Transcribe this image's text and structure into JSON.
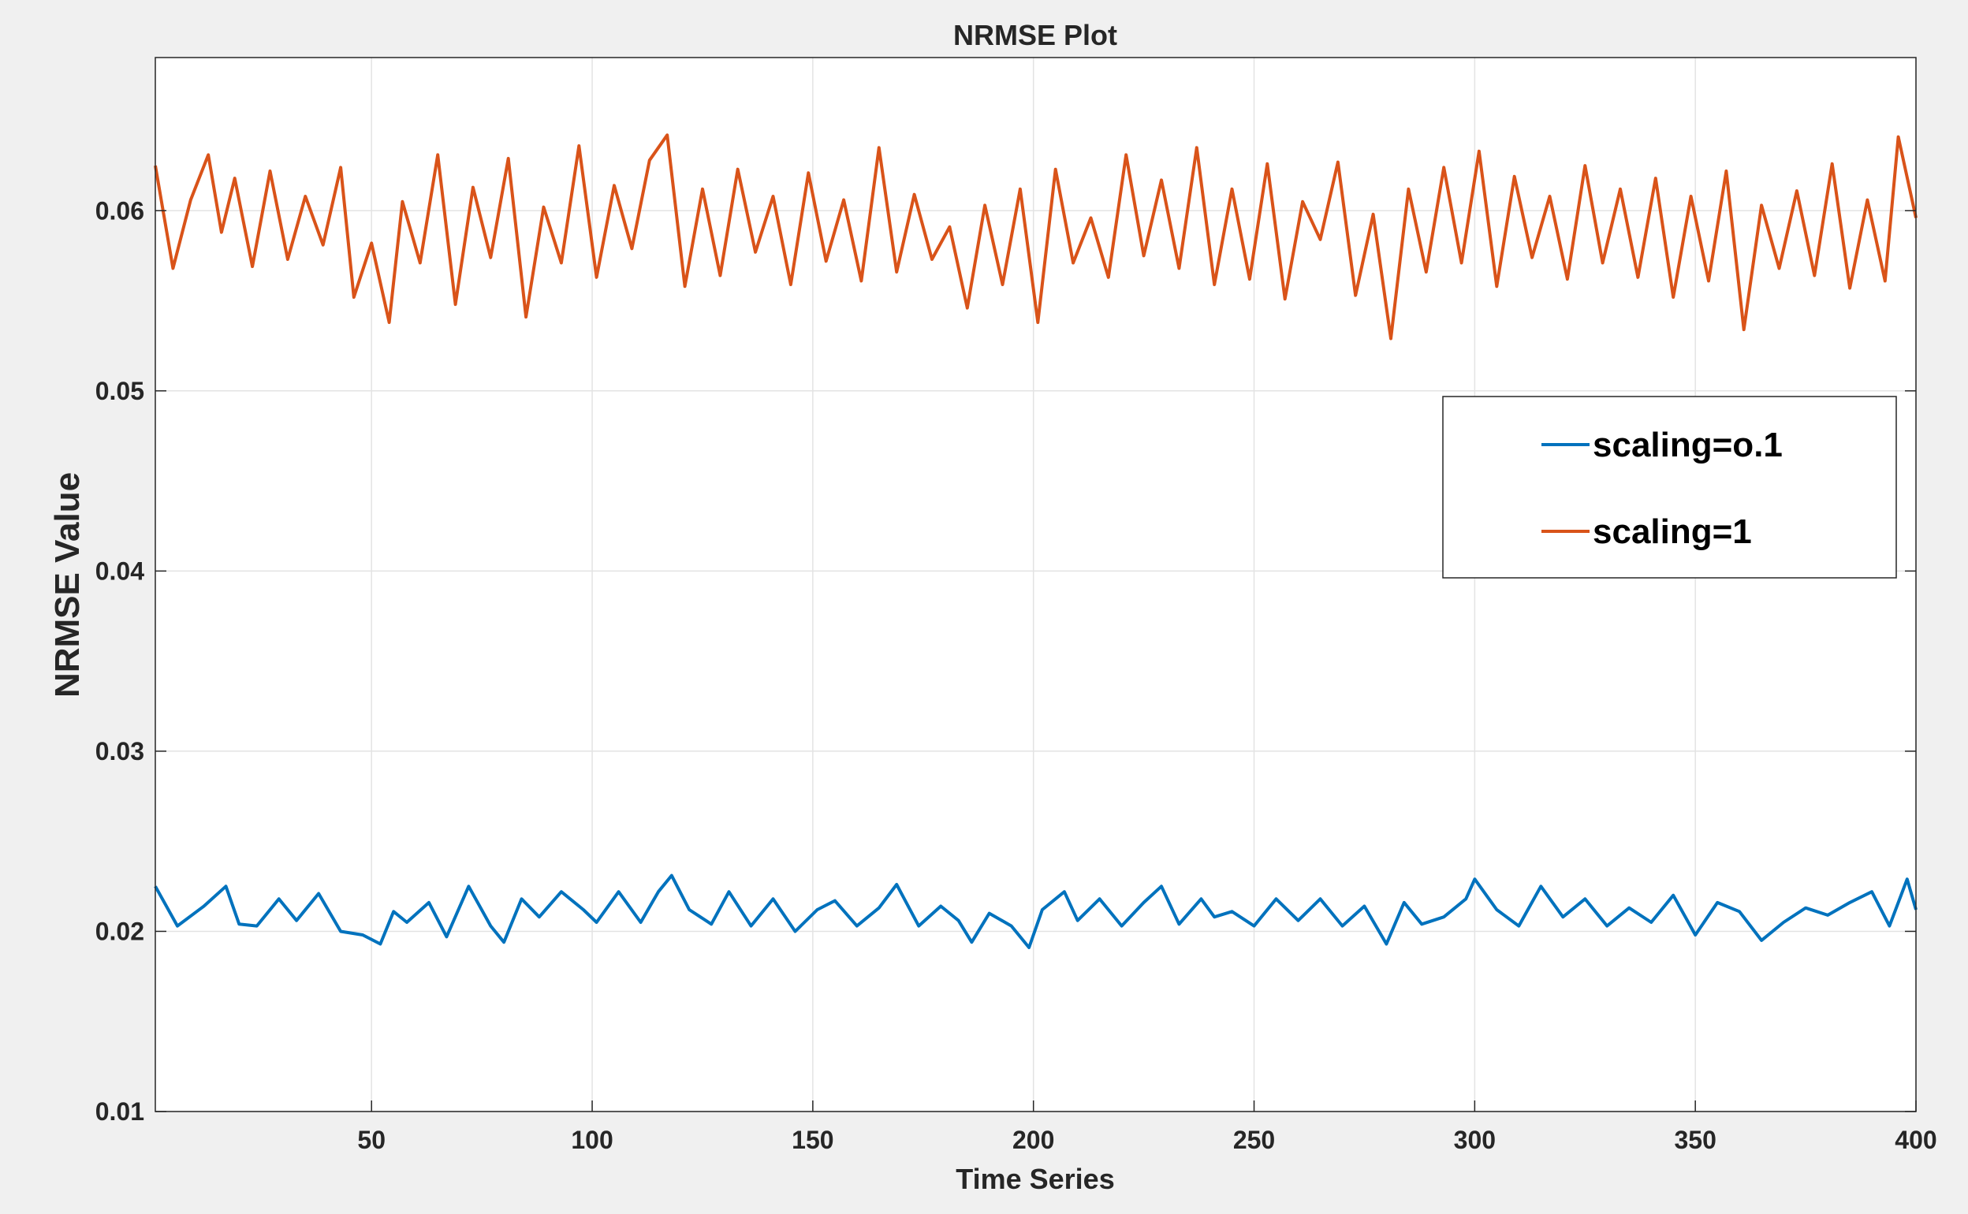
{
  "chart_data": {
    "type": "line",
    "title": "NRMSE Plot",
    "xlabel": "Time Series",
    "ylabel": "NRMSE Value",
    "xlim": [
      1,
      400
    ],
    "ylim": [
      0.01,
      0.0685
    ],
    "xticks": [
      50,
      100,
      150,
      200,
      250,
      300,
      350,
      400
    ],
    "yticks": [
      0.01,
      0.02,
      0.03,
      0.04,
      0.05,
      0.06
    ],
    "xtick_labels": [
      "50",
      "100",
      "150",
      "200",
      "250",
      "300",
      "350",
      "400"
    ],
    "ytick_labels": [
      "0.01",
      "0.02",
      "0.03",
      "0.04",
      "0.05",
      "0.06"
    ],
    "grid": true,
    "legend_position": "right",
    "series": [
      {
        "name": "scaling=o.1",
        "color": "#0072BD",
        "x": [
          1,
          6,
          12,
          17,
          20,
          24,
          29,
          33,
          38,
          43,
          48,
          52,
          55,
          58,
          63,
          67,
          72,
          77,
          80,
          84,
          88,
          93,
          98,
          101,
          106,
          111,
          115,
          118,
          122,
          127,
          131,
          136,
          141,
          146,
          151,
          155,
          160,
          165,
          169,
          174,
          179,
          183,
          186,
          190,
          195,
          199,
          202,
          207,
          210,
          215,
          220,
          225,
          229,
          233,
          238,
          241,
          245,
          250,
          255,
          260,
          265,
          270,
          275,
          280,
          284,
          288,
          293,
          298,
          300,
          305,
          310,
          315,
          320,
          325,
          330,
          335,
          340,
          345,
          350,
          355,
          360,
          365,
          370,
          375,
          380,
          385,
          390,
          394,
          398,
          400
        ],
        "y": [
          0.0225,
          0.0203,
          0.0214,
          0.0225,
          0.0204,
          0.0203,
          0.0218,
          0.0206,
          0.0221,
          0.02,
          0.0198,
          0.0193,
          0.0211,
          0.0205,
          0.0216,
          0.0197,
          0.0225,
          0.0203,
          0.0194,
          0.0218,
          0.0208,
          0.0222,
          0.0212,
          0.0205,
          0.0222,
          0.0205,
          0.0222,
          0.0231,
          0.0212,
          0.0204,
          0.0222,
          0.0203,
          0.0218,
          0.02,
          0.0212,
          0.0217,
          0.0203,
          0.0213,
          0.0226,
          0.0203,
          0.0214,
          0.0206,
          0.0194,
          0.021,
          0.0203,
          0.0191,
          0.0212,
          0.0222,
          0.0206,
          0.0218,
          0.0203,
          0.0216,
          0.0225,
          0.0204,
          0.0218,
          0.0208,
          0.0211,
          0.0203,
          0.0218,
          0.0206,
          0.0218,
          0.0203,
          0.0214,
          0.0193,
          0.0216,
          0.0204,
          0.0208,
          0.0218,
          0.0229,
          0.0212,
          0.0203,
          0.0225,
          0.0208,
          0.0218,
          0.0203,
          0.0213,
          0.0205,
          0.022,
          0.0198,
          0.0216,
          0.0211,
          0.0195,
          0.0205,
          0.0213,
          0.0209,
          0.0216,
          0.0222,
          0.0203,
          0.0229,
          0.0212
        ]
      },
      {
        "name": "scaling=1",
        "color": "#D95319",
        "x": [
          1,
          5,
          9,
          13,
          16,
          19,
          23,
          27,
          31,
          35,
          39,
          43,
          46,
          50,
          54,
          57,
          61,
          65,
          69,
          73,
          77,
          81,
          85,
          89,
          93,
          97,
          101,
          105,
          109,
          113,
          117,
          121,
          125,
          129,
          133,
          137,
          141,
          145,
          149,
          153,
          157,
          161,
          165,
          169,
          173,
          177,
          181,
          185,
          189,
          193,
          197,
          201,
          205,
          209,
          213,
          217,
          221,
          225,
          229,
          233,
          237,
          241,
          245,
          249,
          253,
          257,
          261,
          265,
          269,
          273,
          277,
          281,
          285,
          289,
          293,
          297,
          301,
          305,
          309,
          313,
          317,
          321,
          325,
          329,
          333,
          337,
          341,
          345,
          349,
          353,
          357,
          361,
          365,
          369,
          373,
          377,
          381,
          385,
          389,
          393,
          396,
          400
        ],
        "y": [
          0.0625,
          0.0568,
          0.0606,
          0.0631,
          0.0588,
          0.0618,
          0.0569,
          0.0622,
          0.0573,
          0.0608,
          0.0581,
          0.0624,
          0.0552,
          0.0582,
          0.0538,
          0.0605,
          0.0571,
          0.0631,
          0.0548,
          0.0613,
          0.0574,
          0.0629,
          0.0541,
          0.0602,
          0.0571,
          0.0636,
          0.0563,
          0.0614,
          0.0579,
          0.0628,
          0.0642,
          0.0558,
          0.0612,
          0.0564,
          0.0623,
          0.0577,
          0.0608,
          0.0559,
          0.0621,
          0.0572,
          0.0606,
          0.0561,
          0.0635,
          0.0566,
          0.0609,
          0.0573,
          0.0591,
          0.0546,
          0.0603,
          0.0559,
          0.0612,
          0.0538,
          0.0623,
          0.0571,
          0.0596,
          0.0563,
          0.0631,
          0.0575,
          0.0617,
          0.0568,
          0.0635,
          0.0559,
          0.0612,
          0.0562,
          0.0626,
          0.0551,
          0.0605,
          0.0584,
          0.0627,
          0.0553,
          0.0598,
          0.0529,
          0.0612,
          0.0566,
          0.0624,
          0.0571,
          0.0633,
          0.0558,
          0.0619,
          0.0574,
          0.0608,
          0.0562,
          0.0625,
          0.0571,
          0.0612,
          0.0563,
          0.0618,
          0.0552,
          0.0608,
          0.0561,
          0.0622,
          0.0534,
          0.0603,
          0.0568,
          0.0611,
          0.0564,
          0.0626,
          0.0557,
          0.0606,
          0.0561,
          0.0641,
          0.0596
        ]
      }
    ]
  }
}
